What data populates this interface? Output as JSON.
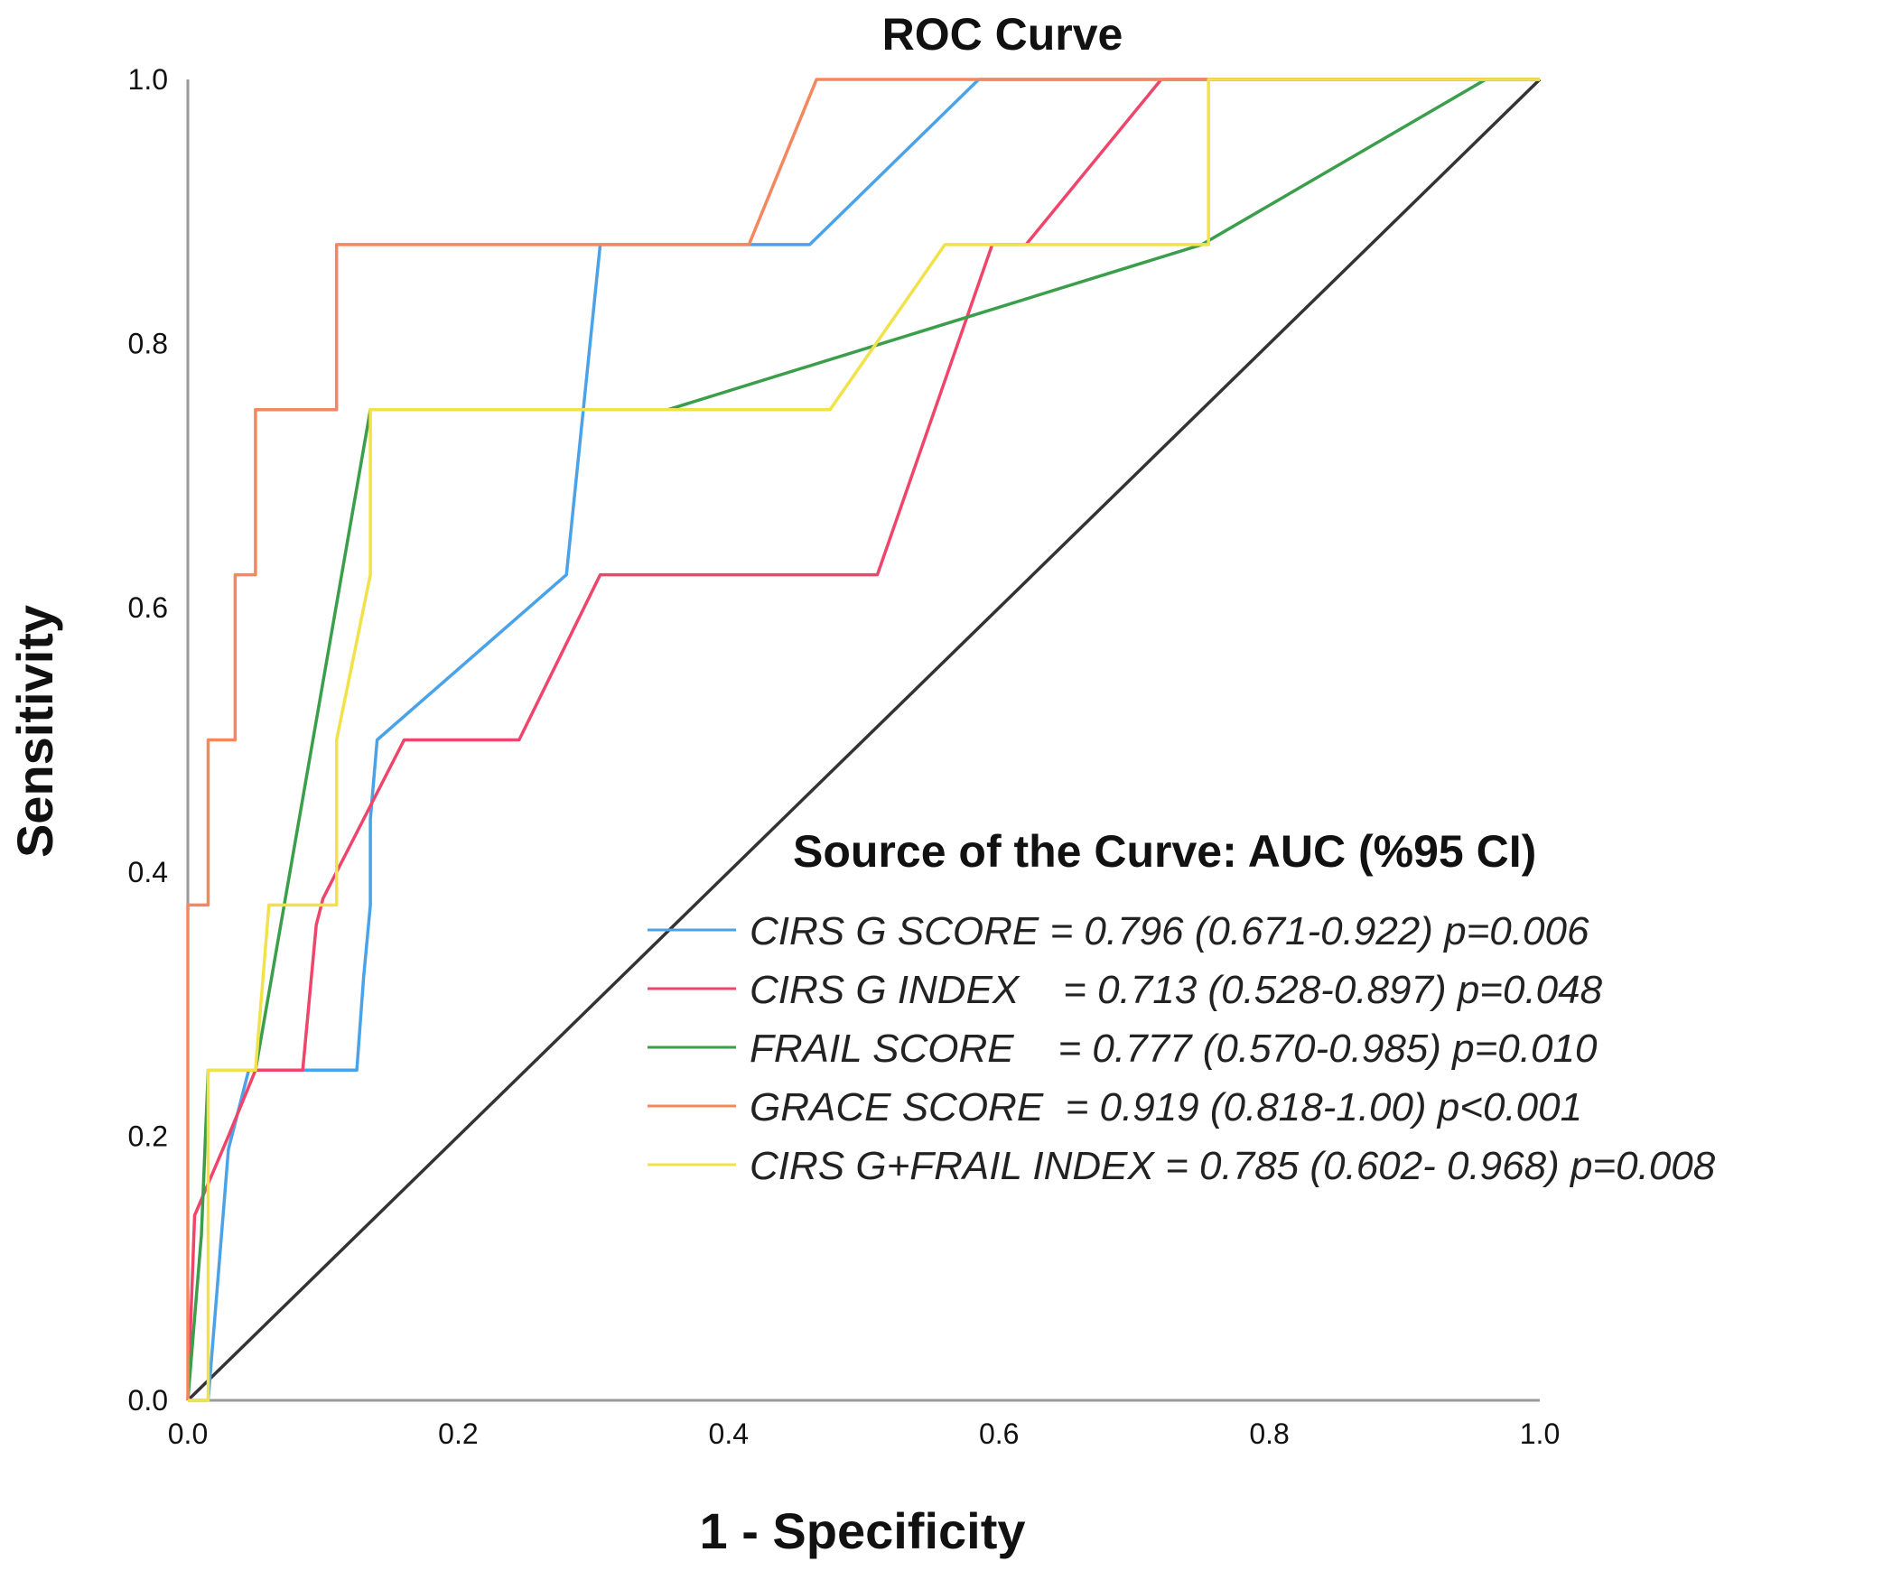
{
  "chart_data": {
    "type": "line",
    "title": "ROC Curve",
    "xlabel": "1 - Specificity",
    "ylabel": "Sensitivity",
    "xlim": [
      0,
      1
    ],
    "ylim": [
      0,
      1
    ],
    "x_ticks": [
      "0.0",
      "0.2",
      "0.4",
      "0.6",
      "0.8",
      "1.0"
    ],
    "y_ticks": [
      "0.0",
      "0.2",
      "0.4",
      "0.6",
      "0.8",
      "1.0"
    ],
    "legend_title": "Source of the Curve: AUC (%95 CI)",
    "reference_line": {
      "color": "#333333",
      "x": [
        0,
        1
      ],
      "y": [
        0,
        1
      ]
    },
    "series": [
      {
        "name": "CIRS G SCORE",
        "legend_label": "CIRS G SCORE = 0.796 (0.671-0.922) p=0.006",
        "color": "#4aa3e8",
        "x": [
          0,
          0.015,
          0.03,
          0.045,
          0.06,
          0.08,
          0.11,
          0.125,
          0.13,
          0.135,
          0.135,
          0.14,
          0.28,
          0.305,
          0.46,
          0.585,
          1.0
        ],
        "y": [
          0,
          0,
          0.19,
          0.25,
          0.25,
          0.25,
          0.25,
          0.25,
          0.32,
          0.375,
          0.44,
          0.5,
          0.625,
          0.875,
          0.875,
          1.0,
          1.0
        ]
      },
      {
        "name": "CIRS G INDEX",
        "legend_label": "CIRS G INDEX    = 0.713 (0.528-0.897) p=0.048",
        "color": "#f0456b",
        "x": [
          0,
          0.005,
          0.03,
          0.05,
          0.085,
          0.095,
          0.1,
          0.16,
          0.245,
          0.305,
          0.51,
          0.595,
          0.62,
          0.72,
          0.755,
          1.0
        ],
        "y": [
          0,
          0.14,
          0.2,
          0.25,
          0.25,
          0.36,
          0.38,
          0.5,
          0.5,
          0.625,
          0.625,
          0.875,
          0.875,
          1.0,
          1.0,
          1.0
        ]
      },
      {
        "name": "FRAIL SCORE",
        "legend_label": "FRAIL SCORE    = 0.777 (0.570-0.985) p=0.010",
        "color": "#3a9e4a",
        "x": [
          0,
          0.01,
          0.015,
          0.05,
          0.135,
          0.355,
          0.75,
          0.96,
          1.0
        ],
        "y": [
          0,
          0.125,
          0.25,
          0.25,
          0.75,
          0.75,
          0.875,
          1.0,
          1.0
        ]
      },
      {
        "name": "GRACE SCORE",
        "legend_label": "GRACE SCORE  = 0.919 (0.818-1.00) p<0.001",
        "color": "#f5875e",
        "x": [
          0,
          0,
          0.015,
          0.015,
          0.035,
          0.035,
          0.05,
          0.05,
          0.11,
          0.11,
          0.415,
          0.465,
          1.0
        ],
        "y": [
          0,
          0.375,
          0.375,
          0.5,
          0.5,
          0.625,
          0.625,
          0.75,
          0.75,
          0.875,
          0.875,
          1.0,
          1.0
        ]
      },
      {
        "name": "CIRS G+FRAIL INDEX",
        "legend_label": "CIRS G+FRAIL INDEX = 0.785 (0.602- 0.968) p=0.008",
        "color": "#f2e24a",
        "x": [
          0,
          0.015,
          0.015,
          0.05,
          0.06,
          0.11,
          0.11,
          0.135,
          0.135,
          0.475,
          0.56,
          0.755,
          0.755,
          1.0
        ],
        "y": [
          0,
          0,
          0.25,
          0.25,
          0.375,
          0.375,
          0.5,
          0.625,
          0.75,
          0.75,
          0.875,
          0.875,
          1.0,
          1.0
        ]
      }
    ]
  }
}
